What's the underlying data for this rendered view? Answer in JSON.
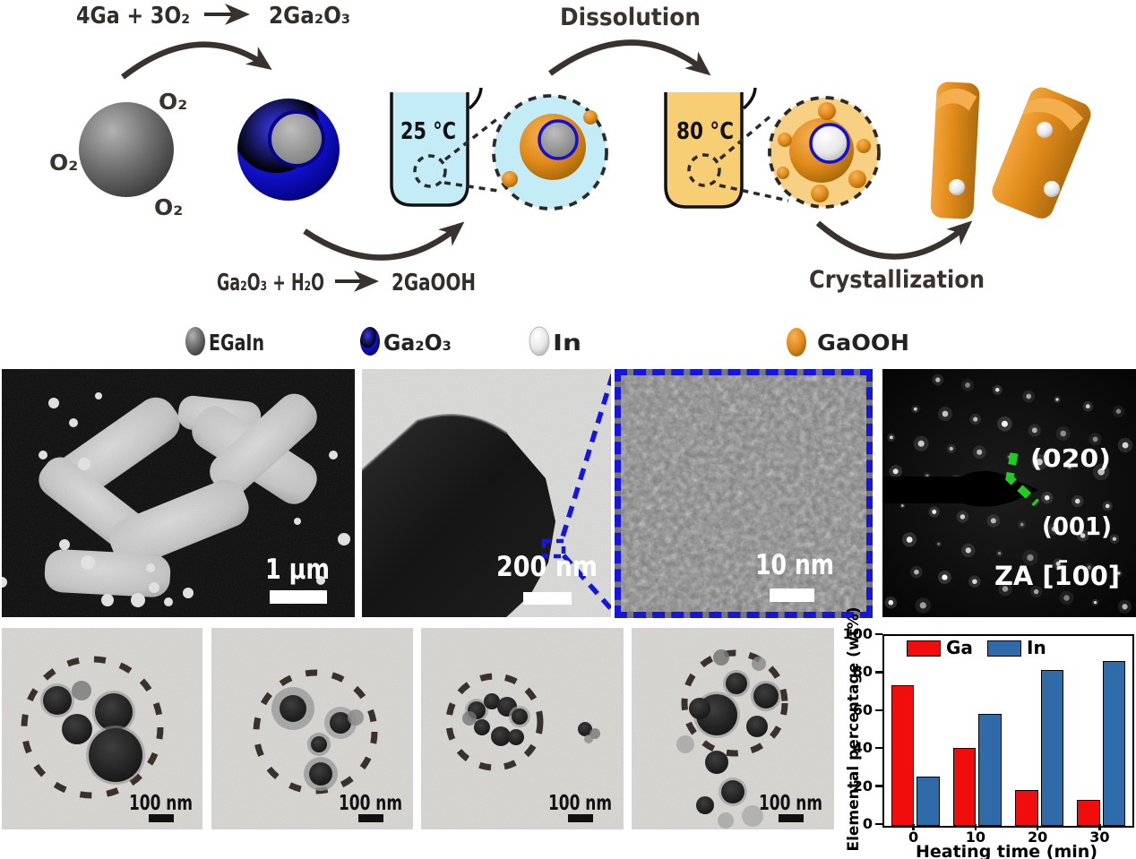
{
  "scheme": {
    "eq_oxidation_lhs": "4Ga + 3O₂",
    "eq_oxidation_rhs": "2Ga₂O₃",
    "dissolution_label": "Dissolution",
    "eq_hydrolysis_lhs": "Ga₂O₃ + H₂O",
    "eq_hydrolysis_rhs": "2GaOOH",
    "crystallization_label": "Crystallization",
    "o2_label": "O₂",
    "cold_bath_temp": "25 °C",
    "hot_bath_temp": "80 °C",
    "legend": [
      {
        "label": "EGaIn",
        "color": "#606060"
      },
      {
        "label": "Ga₂O₃",
        "color": "#1414CC"
      },
      {
        "label": "In",
        "color": "#E9E9E9"
      },
      {
        "label": "GaOOH",
        "color": "#E8941F"
      }
    ]
  },
  "micrographs": {
    "sem": {
      "scale_label": "1 µm"
    },
    "tem": {
      "scale_label": "200 nm"
    },
    "hrtem": {
      "scale_label": "10 nm"
    },
    "saed": {
      "plane_label_top": "(020)",
      "plane_label_bottom": "(001)",
      "zone_axis_label": "ZA [1̄00]"
    }
  },
  "tem_time_series": [
    {
      "scale_label": "100 nm"
    },
    {
      "scale_label": "100 nm"
    },
    {
      "scale_label": "100 nm"
    },
    {
      "scale_label": "100 nm"
    }
  ],
  "chart_data": {
    "type": "bar",
    "categories": [
      "0",
      "10",
      "20",
      "30"
    ],
    "series": [
      {
        "name": "Ga",
        "color": "#F20D0D",
        "values": [
          74,
          41,
          19,
          13.5
        ]
      },
      {
        "name": "In",
        "color": "#2E6BA8",
        "values": [
          26,
          59,
          82,
          87
        ]
      }
    ],
    "xlabel": "Heating time (min)",
    "ylabel": "Elemental percentage (wt%)",
    "ylim": [
      0,
      100
    ],
    "yticks": [
      0,
      20,
      40,
      60,
      80,
      100
    ],
    "legend_position": "top-inside",
    "grid": false
  }
}
